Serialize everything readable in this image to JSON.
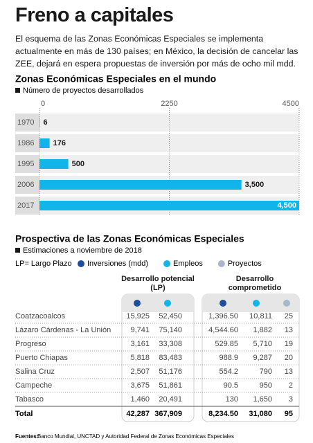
{
  "header": {
    "title": "Freno a capitales",
    "text": "El esquema de las Zonas Económicas Especiales se implementa actualmente en más de 130 países; en México, la decisión de cancelar las ZEE, dejará en espera propuestas de inversión por más de ocho mil mdd."
  },
  "chart_data": {
    "type": "bar",
    "orientation": "horizontal",
    "title": "Zonas Económicas Especiales en el mundo",
    "legend_label": "Número de proyectos desarrollados",
    "categories": [
      "1970",
      "1986",
      "1995",
      "2006",
      "2017"
    ],
    "values": [
      6,
      176,
      500,
      3500,
      4500
    ],
    "value_labels": [
      "6",
      "176",
      "500",
      "3,500",
      "4,500"
    ],
    "color": "#12b5ea",
    "xlim": [
      0,
      4500
    ],
    "xticks": [
      0,
      2250,
      4500
    ],
    "grid": true
  },
  "table": {
    "title": "Prospectiva de las Zonas Económicas Especiales",
    "subtitle": "Estimaciones a noviembre de 2018",
    "note": "LP= Largo Plazo",
    "legend": [
      {
        "label": "Inversiones (mdd)",
        "color": "#1f4f9c"
      },
      {
        "label": "Empleos",
        "color": "#12b5ea"
      },
      {
        "label": "Proyectos",
        "color": "#a8b8cc"
      }
    ],
    "groups": [
      "Desarrollo potencial (LP)",
      "Desarrollo comprometido"
    ],
    "rows": [
      [
        "Coatzacoalcos",
        "15,925",
        "52,450",
        "1,396.50",
        "10,811",
        "25"
      ],
      [
        "Lázaro Cárdenas - La Unión",
        "9,741",
        "75,140",
        "4,544.60",
        "1,882",
        "13"
      ],
      [
        "Progreso",
        "3,161",
        "33,308",
        "529.85",
        "5,710",
        "19"
      ],
      [
        "Puerto Chiapas",
        "5,818",
        "83,483",
        "988.9",
        "9,287",
        "20"
      ],
      [
        "Salina Cruz",
        "2,507",
        "51,176",
        "554.2",
        "790",
        "13"
      ],
      [
        "Campeche",
        "3,675",
        "51,861",
        "90.5",
        "950",
        "2"
      ],
      [
        "Tabasco",
        "1,460",
        "20,491",
        "130",
        "1,650",
        "3"
      ]
    ],
    "total": [
      "Total",
      "42,287",
      "367,909",
      "8,234.50",
      "31,080",
      "95"
    ]
  },
  "footer": {
    "label": "Fuentes:",
    "text": "Banco Mundial, UNCTAD y Autoridad Federal de Zonas Económicas Especiales"
  }
}
